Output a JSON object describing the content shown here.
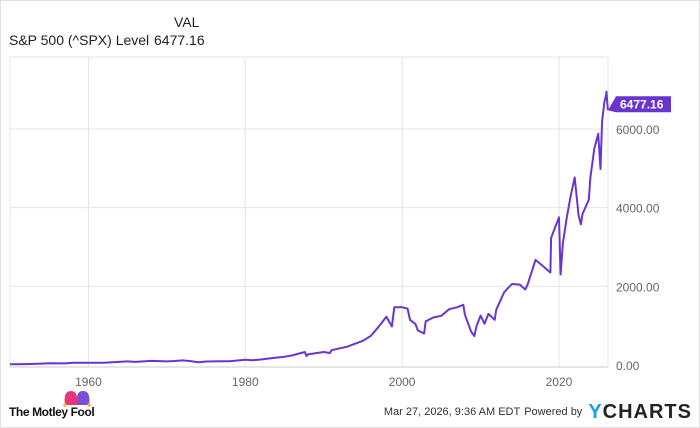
{
  "header": {
    "col_label": "VAL",
    "series_name": "S&P 500 (^SPX) Level",
    "series_value": "6477.16"
  },
  "footer": {
    "timestamp": "Mar 27, 2026, 9:36 AM EDT",
    "powered_by": "Powered by",
    "brand_y": "Y",
    "brand_rest": "CHARTS",
    "logo_text": "The Motley Fool"
  },
  "colors": {
    "line": "#6a35cf",
    "grid": "#e4e4e4",
    "axis_text": "#666666"
  },
  "chart_data": {
    "type": "line",
    "title": "S&P 500 (^SPX) Level",
    "xlabel": "",
    "ylabel": "",
    "xlim": [
      1950,
      2026.25
    ],
    "ylim": [
      0,
      7830
    ],
    "x_ticks": [
      1960,
      1980,
      2000,
      2020
    ],
    "x_tick_labels": [
      "1960",
      "1980",
      "2000",
      "2020"
    ],
    "y_ticks": [
      0,
      2000,
      4000,
      6000
    ],
    "y_tick_labels": [
      "0.00",
      "2000.00",
      "4000.00",
      "6000.00"
    ],
    "last_value_label": "6477.16",
    "grid": true,
    "series": [
      {
        "name": "S&P 500 (^SPX) Level",
        "x": [
          1950,
          1952,
          1954,
          1955,
          1957,
          1958,
          1960,
          1962,
          1963,
          1965,
          1966,
          1968,
          1970,
          1971,
          1972,
          1973,
          1974,
          1975,
          1977,
          1978,
          1980,
          1981,
          1982,
          1983,
          1985,
          1986,
          1987.6,
          1987.8,
          1988,
          1990,
          1990.8,
          1991,
          1993,
          1995,
          1996,
          1997,
          1998,
          1998.7,
          1999,
          2000,
          2000.7,
          2001,
          2001.7,
          2002,
          2002.8,
          2003,
          2004,
          2005,
          2006,
          2007,
          2007.8,
          2008,
          2008.8,
          2009.2,
          2009.5,
          2010,
          2010.5,
          2011,
          2011.8,
          2012,
          2013,
          2014,
          2015,
          2015.7,
          2016,
          2017,
          2018,
          2018.9,
          2019,
          2020,
          2020.2,
          2020.5,
          2021,
          2021.5,
          2022,
          2022.5,
          2022.8,
          2023,
          2023.8,
          2024,
          2024.5,
          2025,
          2025.3,
          2025.5,
          2025.8,
          2026,
          2026.05,
          2026.15,
          2026.24
        ],
        "y": [
          17,
          24,
          35,
          45,
          40,
          55,
          58,
          57,
          70,
          92,
          80,
          103,
          92,
          102,
          118,
          98,
          70,
          90,
          95,
          96,
          136,
          122,
          140,
          165,
          211,
          245,
          330,
          230,
          270,
          330,
          305,
          375,
          466,
          615,
          740,
          970,
          1229,
          980,
          1469,
          1469,
          1430,
          1150,
          1040,
          880,
          800,
          1111,
          1210,
          1250,
          1418,
          1468,
          1530,
          1280,
          850,
          735,
          1000,
          1257,
          1050,
          1300,
          1150,
          1400,
          1848,
          2058,
          2043,
          1920,
          2043,
          2673,
          2506,
          2350,
          3230,
          3756,
          2300,
          3100,
          3756,
          4300,
          4766,
          3800,
          3577,
          3839,
          4200,
          4769,
          5500,
          5881,
          4982,
          6200,
          6700,
          6845,
          6950,
          6700,
          6477
        ]
      }
    ]
  }
}
